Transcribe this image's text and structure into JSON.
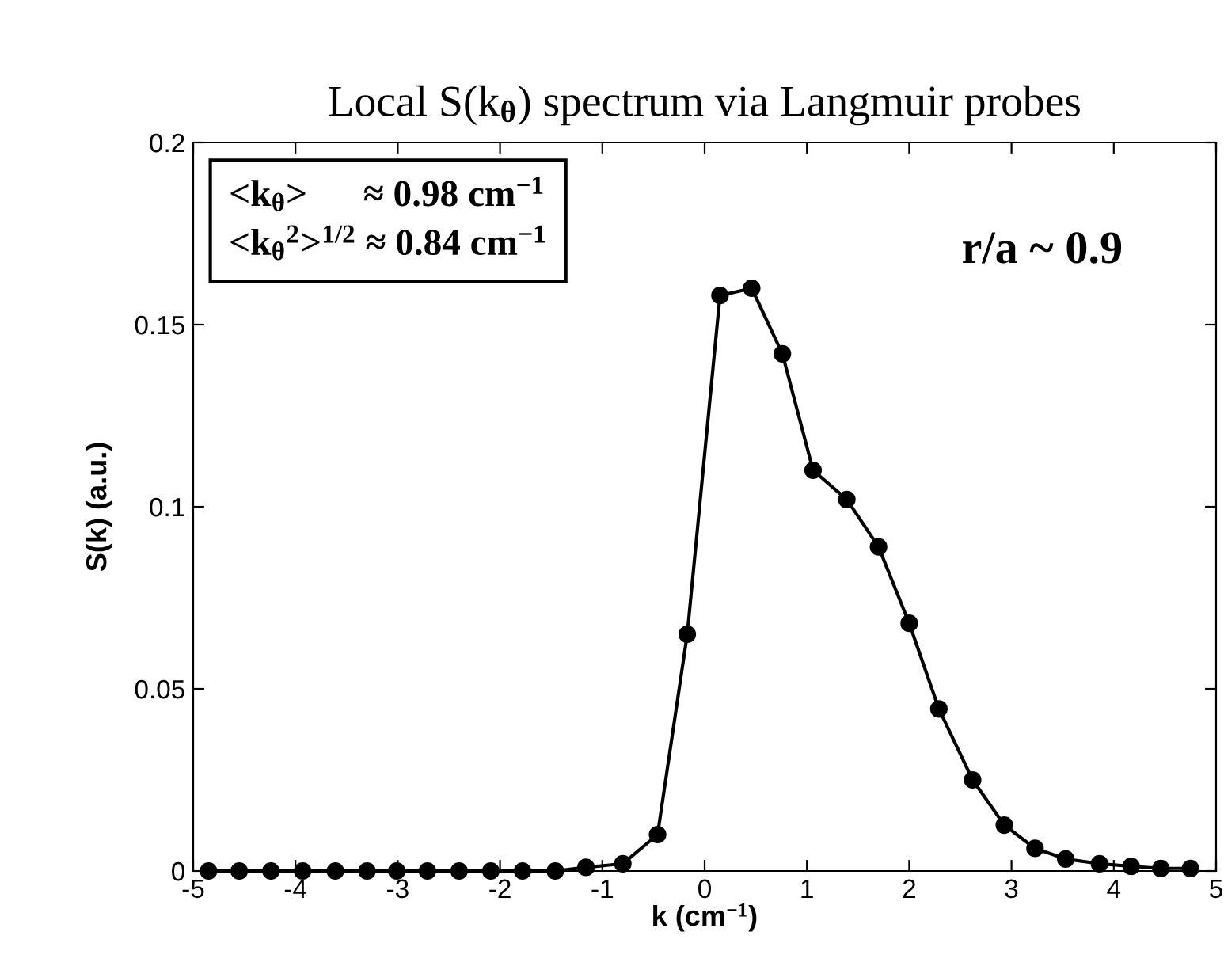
{
  "chart_data": {
    "type": "line",
    "title": "Local S(k$_{θ}$) spectrum via Langmuir probes",
    "xlabel": "k (cm$^{−1}$)",
    "ylabel": "S(k) (a.u.)",
    "annotations": [
      "<k$_{θ}$>      ≈ 0.98 cm$^{−1}$",
      "<k$_{θ}$$^{2}$>$^{1/2}$ ≈ 0.84 cm$^{−1}$",
      "r/a ~ 0.9"
    ],
    "x": [
      -4.85,
      -4.55,
      -4.24,
      -3.93,
      -3.61,
      -3.3,
      -3.01,
      -2.71,
      -2.4,
      -2.09,
      -1.78,
      -1.46,
      -1.16,
      -0.8,
      -0.46,
      -0.17,
      0.15,
      0.46,
      0.76,
      1.06,
      1.39,
      1.7,
      2.0,
      2.29,
      2.62,
      2.93,
      3.23,
      3.53,
      3.86,
      4.17,
      4.46,
      4.75
    ],
    "series": [
      {
        "color": "#000000",
        "values": [
          0,
          0,
          0,
          0,
          0,
          0,
          0,
          0,
          0,
          0,
          0,
          0,
          0.001,
          0.002,
          0.01,
          0.065,
          0.158,
          0.16,
          0.142,
          0.11,
          0.102,
          0.089,
          0.068,
          0.0445,
          0.025,
          0.0126,
          0.0062,
          0.0033,
          0.002,
          0.0013,
          0.0007,
          0.0007
        ]
      }
    ],
    "xlim": [
      -5,
      5
    ],
    "ylim": [
      0,
      0.2
    ],
    "xticks": [
      -5,
      -4,
      -3,
      -2,
      -1,
      0,
      1,
      2,
      3,
      4,
      5
    ],
    "yticks": [
      0,
      0.05,
      0.1,
      0.15,
      0.2
    ],
    "grid": false,
    "marker": "circle",
    "line_style": "solid"
  }
}
